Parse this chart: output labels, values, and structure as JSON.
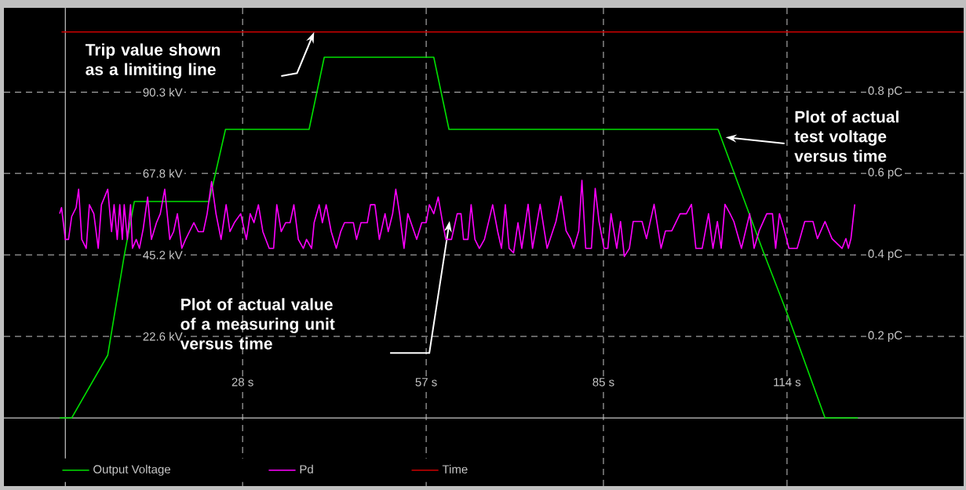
{
  "chart_data": {
    "type": "line",
    "xlim": [
      -9.7,
      141.9
    ],
    "ylim": [
      -18.9,
      113.7
    ],
    "y2lim": [
      -0.167,
      1.006
    ],
    "xticks": [
      {
        "value": 28,
        "label": "28 s"
      },
      {
        "value": 57,
        "label": "57 s"
      },
      {
        "value": 85,
        "label": "85 s"
      },
      {
        "value": 114,
        "label": "114 s"
      }
    ],
    "yticks": [
      {
        "value": 22.6,
        "label": "22.6 kV"
      },
      {
        "value": 45.2,
        "label": "45.2 kV"
      },
      {
        "value": 67.8,
        "label": "67.8 kV"
      },
      {
        "value": 90.3,
        "label": "90.3 kV"
      }
    ],
    "y2ticks": [
      {
        "value": 0.2,
        "label": "0.2 pC"
      },
      {
        "value": 0.4,
        "label": "0.4 pC"
      },
      {
        "value": 0.6,
        "label": "0.6 pC"
      },
      {
        "value": 0.8,
        "label": "0.8 pC"
      }
    ],
    "grid": true,
    "legend": "bottom left",
    "series": [
      {
        "name": "Output Voltage",
        "color": "#00e000",
        "x": [
          -0.9,
          1,
          6.7,
          9.3,
          10.9,
          22.7,
          25.3,
          38.5,
          40.9,
          58.2,
          60.6,
          103.1,
          110.2,
          114,
          120,
          125.2
        ],
        "values": [
          0,
          0,
          17.4,
          45,
          60,
          60,
          80,
          80,
          100,
          100,
          80,
          80,
          46.3,
          29.1,
          0,
          0
        ]
      },
      {
        "name": "Pd",
        "color": "#ff00ff",
        "axis": "y2",
        "x": [
          -0.9,
          -0.6,
          0,
          0.5,
          1,
          1.7,
          2.1,
          2.6,
          3.3,
          3.8,
          4.5,
          5.2,
          5.7,
          6.7,
          7.3,
          7.7,
          8.2,
          8.6,
          9,
          9.3,
          9.8,
          10.3,
          10.6,
          11.2,
          11.7,
          12.3,
          13,
          13.6,
          14.4,
          15,
          15.7,
          16.5,
          17.1,
          17.7,
          18.4,
          19,
          19.6,
          20.3,
          21,
          21.8,
          22.4,
          23.1,
          23.8,
          24.6,
          25.4,
          26,
          26.7,
          27.7,
          28.6,
          29.2,
          29.8,
          30.5,
          31.2,
          32.2,
          32.9,
          33.4,
          34.1,
          34.8,
          35.5,
          36.1,
          36.8,
          37.6,
          38.1,
          38.9,
          39.3,
          40.1,
          40.6,
          41.2,
          42,
          42.8,
          43.5,
          44.1,
          45.5,
          46,
          46.7,
          47.7,
          48.2,
          48.9,
          49.6,
          50.5,
          51,
          51.7,
          52.2,
          52.8,
          53.5,
          54.1,
          54.6,
          55.5,
          56.3,
          57,
          57.5,
          58.2,
          58.9,
          59.6,
          60.1,
          61,
          61.9,
          62.5,
          62.9,
          63.6,
          64.1,
          64.7,
          65.4,
          66.2,
          67.5,
          68.3,
          68.9,
          69.5,
          70.1,
          70.8,
          71.5,
          72.1,
          73.1,
          73.8,
          75,
          76.1,
          77.5,
          78.3,
          79.1,
          79.8,
          80.3,
          81.1,
          81.6,
          82.2,
          83.1,
          83.7,
          84.3,
          85.1,
          85.7,
          86.2,
          87.1,
          87.7,
          88.3,
          89.1,
          89.7,
          91.1,
          91.8,
          93,
          94.1,
          94.8,
          95.8,
          97.1,
          98.1,
          98.9,
          99.6,
          100.6,
          101.6,
          102.3,
          103,
          103.6,
          104.2,
          105,
          105.6,
          106.8,
          108.1,
          108.8,
          109.6,
          110.8,
          111.7,
          112.2,
          112.8,
          113.6,
          114.3,
          115.6,
          116.8,
          118.1,
          118.8,
          120,
          121.1,
          122.7,
          123.3,
          123.7,
          124.1,
          124.7
        ],
        "values": [
          0.501,
          0.516,
          0.438,
          0.438,
          0.494,
          0.516,
          0.561,
          0.438,
          0.416,
          0.523,
          0.501,
          0.416,
          0.523,
          0.561,
          0.457,
          0.523,
          0.438,
          0.523,
          0.438,
          0.523,
          0.438,
          0.523,
          0.416,
          0.438,
          0.416,
          0.464,
          0.542,
          0.438,
          0.479,
          0.501,
          0.561,
          0.438,
          0.457,
          0.501,
          0.416,
          0.438,
          0.457,
          0.479,
          0.457,
          0.457,
          0.501,
          0.58,
          0.501,
          0.438,
          0.523,
          0.457,
          0.479,
          0.501,
          0.438,
          0.501,
          0.479,
          0.523,
          0.457,
          0.416,
          0.416,
          0.523,
          0.457,
          0.479,
          0.479,
          0.523,
          0.438,
          0.416,
          0.438,
          0.416,
          0.479,
          0.523,
          0.479,
          0.523,
          0.457,
          0.416,
          0.457,
          0.479,
          0.479,
          0.438,
          0.479,
          0.479,
          0.523,
          0.523,
          0.438,
          0.501,
          0.457,
          0.501,
          0.561,
          0.501,
          0.416,
          0.501,
          0.479,
          0.438,
          0.479,
          0.479,
          0.523,
          0.501,
          0.542,
          0.479,
          0.438,
          0.438,
          0.501,
          0.501,
          0.438,
          0.438,
          0.523,
          0.438,
          0.416,
          0.438,
          0.523,
          0.457,
          0.416,
          0.523,
          0.416,
          0.405,
          0.479,
          0.416,
          0.524,
          0.416,
          0.524,
          0.416,
          0.482,
          0.544,
          0.459,
          0.44,
          0.416,
          0.459,
          0.583,
          0.416,
          0.416,
          0.563,
          0.482,
          0.416,
          0.416,
          0.501,
          0.416,
          0.482,
          0.396,
          0.416,
          0.482,
          0.482,
          0.44,
          0.524,
          0.416,
          0.459,
          0.459,
          0.501,
          0.501,
          0.524,
          0.416,
          0.416,
          0.501,
          0.416,
          0.482,
          0.416,
          0.524,
          0.501,
          0.482,
          0.416,
          0.501,
          0.416,
          0.459,
          0.501,
          0.501,
          0.416,
          0.501,
          0.459,
          0.416,
          0.416,
          0.482,
          0.482,
          0.44,
          0.482,
          0.44,
          0.416,
          0.44,
          0.416,
          0.44,
          0.524
        ]
      },
      {
        "name": "Time",
        "color": "#cc0000",
        "x": [
          -0.6,
          141.9
        ],
        "values": [
          107,
          107
        ]
      }
    ],
    "annotations": [
      "Trip value shown as a limiting line",
      "Plot of actual test voltage versus time",
      "Plot of actual value of a measuring unit versus time"
    ]
  }
}
